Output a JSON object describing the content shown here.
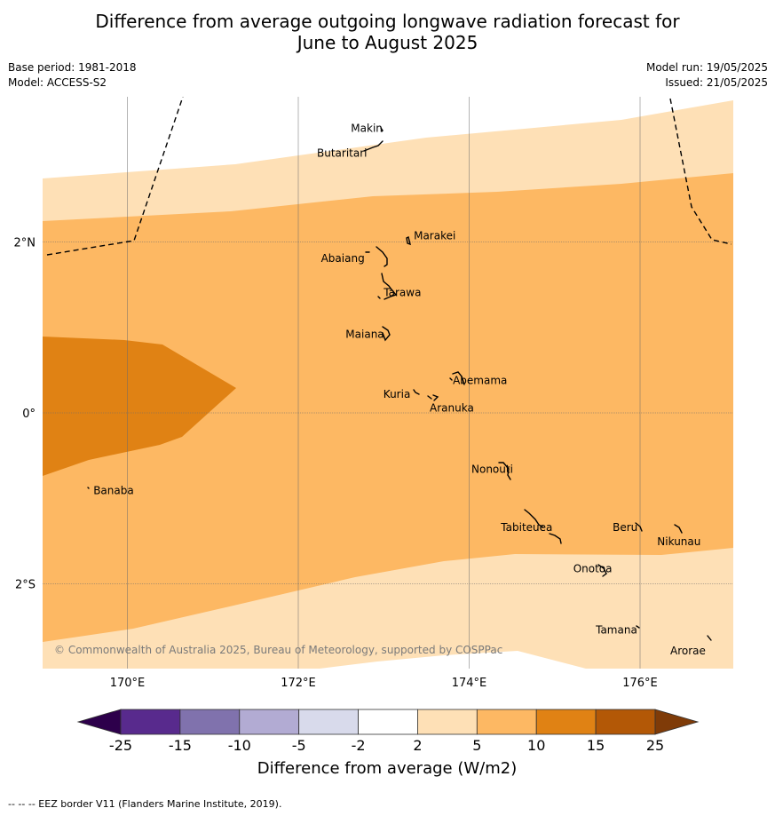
{
  "title_line1": "Difference from average outgoing longwave radiation forecast for",
  "title_line2": "June to August 2025",
  "base_period": "Base period: 1981-2018",
  "model": "Model: ACCESS-S2",
  "model_run": "Model run: 19/05/2025",
  "issued": "Issued: 21/05/2025",
  "copyright": "© Commonwealth of Australia 2025, Bureau of Meteorology, supported by COSPPac",
  "eez_note": "--  --  -- EEZ border V11 (Flanders Marine Institute, 2019).",
  "lat_labels": [
    "2°N",
    "0°",
    "2°S"
  ],
  "lon_labels": [
    "170°E",
    "172°E",
    "174°E",
    "176°E"
  ],
  "places": [
    {
      "name": "Makin",
      "lon": 173.0,
      "lat": 3.35
    },
    {
      "name": "Butaritari",
      "lon": 172.8,
      "lat": 3.1
    },
    {
      "name": "Marakei",
      "lon": 173.3,
      "lat": 2.0
    },
    {
      "name": "Abaiang",
      "lon": 172.9,
      "lat": 1.8
    },
    {
      "name": "Tarawa",
      "lon": 173.0,
      "lat": 1.42
    },
    {
      "name": "Maiana",
      "lon": 173.0,
      "lat": 0.92
    },
    {
      "name": "Abemama",
      "lon": 173.85,
      "lat": 0.4
    },
    {
      "name": "Kuria",
      "lon": 173.4,
      "lat": 0.22
    },
    {
      "name": "Aranuka",
      "lon": 173.6,
      "lat": 0.17
    },
    {
      "name": "Banaba",
      "lon": 169.55,
      "lat": -0.87
    },
    {
      "name": "Nonouti",
      "lon": 174.4,
      "lat": -0.65
    },
    {
      "name": "Tabiteuea",
      "lon": 174.85,
      "lat": -1.3
    },
    {
      "name": "Beru",
      "lon": 175.98,
      "lat": -1.33
    },
    {
      "name": "Nikunau",
      "lon": 176.45,
      "lat": -1.35
    },
    {
      "name": "Onotoa",
      "lon": 175.55,
      "lat": -1.8
    },
    {
      "name": "Tamana",
      "lon": 175.98,
      "lat": -2.5
    },
    {
      "name": "Arorae",
      "lon": 176.8,
      "lat": -2.65
    }
  ],
  "colorbar": {
    "ticks": [
      "-25",
      "-15",
      "-10",
      "-5",
      "-2",
      "2",
      "5",
      "10",
      "15",
      "25"
    ],
    "colors": [
      "#582a8d",
      "#8072ad",
      "#b2abd3",
      "#d8daeb",
      "#ffffff",
      "#fee0b6",
      "#fdb863",
      "#e08214",
      "#b35806"
    ],
    "under_color": "#2d004b",
    "over_color": "#7f3b08",
    "label": "Difference from average (W/m2)"
  },
  "colors": {
    "band_2_5": "#fee0b6",
    "band_5_10": "#fdb863",
    "band_10_15": "#e08214",
    "band_neg2_neg5": "#d8daeb",
    "eez_border": "#000000"
  }
}
